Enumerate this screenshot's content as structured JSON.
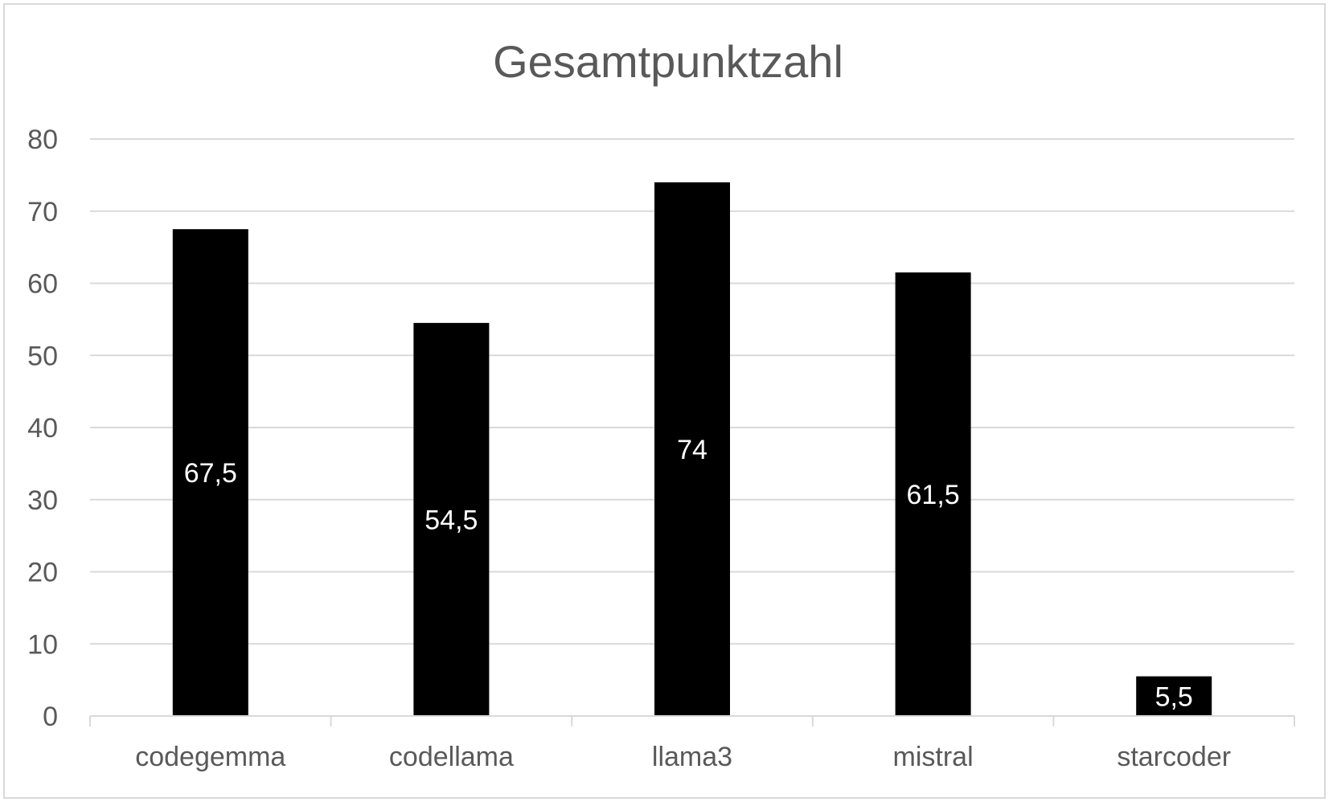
{
  "chart_data": {
    "type": "bar",
    "title": "Gesamtpunktzahl",
    "categories": [
      "codegemma",
      "codellama",
      "llama3",
      "mistral",
      "starcoder"
    ],
    "values": [
      67.5,
      54.5,
      74,
      61.5,
      5.5
    ],
    "data_labels": [
      "67,5",
      "54,5",
      "74",
      "61,5",
      "5,5"
    ],
    "y_ticks": [
      "0",
      "10",
      "20",
      "30",
      "40",
      "50",
      "60",
      "70",
      "80"
    ],
    "ylim": [
      0,
      80
    ],
    "xlabel": "",
    "ylabel": "",
    "grid": true,
    "legend": "none",
    "bar_color": "#000000",
    "label_color": "#ffffff"
  }
}
